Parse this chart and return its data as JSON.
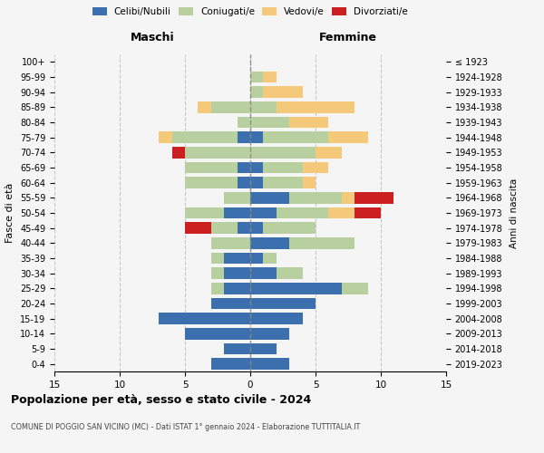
{
  "age_groups": [
    "0-4",
    "5-9",
    "10-14",
    "15-19",
    "20-24",
    "25-29",
    "30-34",
    "35-39",
    "40-44",
    "45-49",
    "50-54",
    "55-59",
    "60-64",
    "65-69",
    "70-74",
    "75-79",
    "80-84",
    "85-89",
    "90-94",
    "95-99",
    "100+"
  ],
  "birth_years": [
    "2019-2023",
    "2014-2018",
    "2009-2013",
    "2004-2008",
    "1999-2003",
    "1994-1998",
    "1989-1993",
    "1984-1988",
    "1979-1983",
    "1974-1978",
    "1969-1973",
    "1964-1968",
    "1959-1963",
    "1954-1958",
    "1949-1953",
    "1944-1948",
    "1939-1943",
    "1934-1938",
    "1929-1933",
    "1924-1928",
    "≤ 1923"
  ],
  "male": {
    "celibe": [
      3,
      2,
      5,
      7,
      3,
      2,
      2,
      2,
      0,
      1,
      2,
      0,
      1,
      1,
      0,
      1,
      0,
      0,
      0,
      0,
      0
    ],
    "coniugato": [
      0,
      0,
      0,
      0,
      0,
      1,
      1,
      1,
      3,
      2,
      3,
      2,
      4,
      4,
      5,
      5,
      1,
      3,
      0,
      0,
      0
    ],
    "vedovo": [
      0,
      0,
      0,
      0,
      0,
      0,
      0,
      0,
      0,
      0,
      0,
      0,
      0,
      0,
      0,
      1,
      0,
      1,
      0,
      0,
      0
    ],
    "divorziato": [
      0,
      0,
      0,
      0,
      0,
      0,
      0,
      0,
      0,
      2,
      0,
      0,
      0,
      0,
      1,
      0,
      0,
      0,
      0,
      0,
      0
    ]
  },
  "female": {
    "nubile": [
      3,
      2,
      3,
      4,
      5,
      7,
      2,
      1,
      3,
      1,
      2,
      3,
      1,
      1,
      0,
      1,
      0,
      0,
      0,
      0,
      0
    ],
    "coniugata": [
      0,
      0,
      0,
      0,
      0,
      2,
      2,
      1,
      5,
      4,
      4,
      4,
      3,
      3,
      5,
      5,
      3,
      2,
      1,
      1,
      0
    ],
    "vedova": [
      0,
      0,
      0,
      0,
      0,
      0,
      0,
      0,
      0,
      0,
      2,
      1,
      1,
      2,
      2,
      3,
      3,
      6,
      3,
      1,
      0
    ],
    "divorziata": [
      0,
      0,
      0,
      0,
      0,
      0,
      0,
      0,
      0,
      0,
      2,
      3,
      0,
      0,
      0,
      0,
      0,
      0,
      0,
      0,
      0
    ]
  },
  "color_celibe": "#3c6fad",
  "color_coniugato": "#b8cfa0",
  "color_vedovo": "#f5c97a",
  "color_divorziato": "#cc2020",
  "xlim": 15,
  "title": "Popolazione per età, sesso e stato civile - 2024",
  "subtitle": "COMUNE DI POGGIO SAN VICINO (MC) - Dati ISTAT 1° gennaio 2024 - Elaborazione TUTTITALIA.IT",
  "ylabel": "Fasce di età",
  "ylabel_right": "Anni di nascita",
  "xlabel_maschi": "Maschi",
  "xlabel_femmine": "Femmine",
  "legend_labels": [
    "Celibi/Nubili",
    "Coniugati/e",
    "Vedovi/e",
    "Divorziati/e"
  ],
  "background_color": "#f5f5f5"
}
